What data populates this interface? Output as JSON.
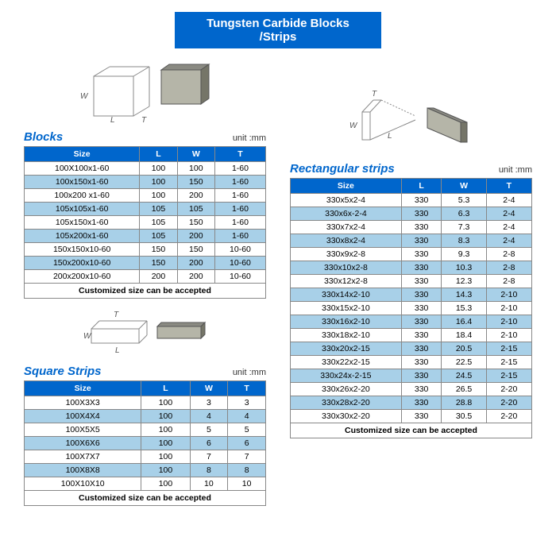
{
  "title": "Tungsten Carbide Blocks /Strips",
  "unit_label": "unit :mm",
  "footer_note": "Customized size can be accepted",
  "headers": {
    "size": "Size",
    "L": "L",
    "W": "W",
    "T": "T"
  },
  "blocks": {
    "title": "Blocks",
    "rows": [
      {
        "size": "100X100x1-60",
        "L": "100",
        "W": "100",
        "T": "1-60",
        "alt": false
      },
      {
        "size": "100x150x1-60",
        "L": "100",
        "W": "150",
        "T": "1-60",
        "alt": true
      },
      {
        "size": "100x200 x1-60",
        "L": "100",
        "W": "200",
        "T": "1-60",
        "alt": false
      },
      {
        "size": "105x105x1-60",
        "L": "105",
        "W": "105",
        "T": "1-60",
        "alt": true
      },
      {
        "size": "105x150x1-60",
        "L": "105",
        "W": "150",
        "T": "1-60",
        "alt": false
      },
      {
        "size": "105x200x1-60",
        "L": "105",
        "W": "200",
        "T": "1-60",
        "alt": true
      },
      {
        "size": "150x150x10-60",
        "L": "150",
        "W": "150",
        "T": "10-60",
        "alt": false
      },
      {
        "size": "150x200x10-60",
        "L": "150",
        "W": "200",
        "T": "10-60",
        "alt": true
      },
      {
        "size": "200x200x10-60",
        "L": "200",
        "W": "200",
        "T": "10-60",
        "alt": false
      }
    ]
  },
  "square_strips": {
    "title": "Square Strips",
    "rows": [
      {
        "size": "100X3X3",
        "L": "100",
        "W": "3",
        "T": "3",
        "alt": false
      },
      {
        "size": "100X4X4",
        "L": "100",
        "W": "4",
        "T": "4",
        "alt": true
      },
      {
        "size": "100X5X5",
        "L": "100",
        "W": "5",
        "T": "5",
        "alt": false
      },
      {
        "size": "100X6X6",
        "L": "100",
        "W": "6",
        "T": "6",
        "alt": true
      },
      {
        "size": "100X7X7",
        "L": "100",
        "W": "7",
        "T": "7",
        "alt": false
      },
      {
        "size": "100X8X8",
        "L": "100",
        "W": "8",
        "T": "8",
        "alt": true
      },
      {
        "size": "100X10X10",
        "L": "100",
        "W": "10",
        "T": "10",
        "alt": false
      }
    ]
  },
  "rect_strips": {
    "title": "Rectangular strips",
    "rows": [
      {
        "size": "330x5x2-4",
        "L": "330",
        "W": "5.3",
        "T": "2-4",
        "alt": false
      },
      {
        "size": "330x6x-2-4",
        "L": "330",
        "W": "6.3",
        "T": "2-4",
        "alt": true
      },
      {
        "size": "330x7x2-4",
        "L": "330",
        "W": "7.3",
        "T": "2-4",
        "alt": false
      },
      {
        "size": "330x8x2-4",
        "L": "330",
        "W": "8.3",
        "T": "2-4",
        "alt": true
      },
      {
        "size": "330x9x2-8",
        "L": "330",
        "W": "9.3",
        "T": "2-8",
        "alt": false
      },
      {
        "size": "330x10x2-8",
        "L": "330",
        "W": "10.3",
        "T": "2-8",
        "alt": true
      },
      {
        "size": "330x12x2-8",
        "L": "330",
        "W": "12.3",
        "T": "2-8",
        "alt": false
      },
      {
        "size": "330x14x2-10",
        "L": "330",
        "W": "14.3",
        "T": "2-10",
        "alt": true
      },
      {
        "size": "330x15x2-10",
        "L": "330",
        "W": "15.3",
        "T": "2-10",
        "alt": false
      },
      {
        "size": "330x16x2-10",
        "L": "330",
        "W": "16.4",
        "T": "2-10",
        "alt": true
      },
      {
        "size": "330x18x2-10",
        "L": "330",
        "W": "18.4",
        "T": "2-10",
        "alt": false
      },
      {
        "size": "330x20x2-15",
        "L": "330",
        "W": "20.5",
        "T": "2-15",
        "alt": true
      },
      {
        "size": "330x22x2-15",
        "L": "330",
        "W": "22.5",
        "T": "2-15",
        "alt": false
      },
      {
        "size": "330x24x-2-15",
        "L": "330",
        "W": "24.5",
        "T": "2-15",
        "alt": true
      },
      {
        "size": "330x26x2-20",
        "L": "330",
        "W": "26.5",
        "T": "2-20",
        "alt": false
      },
      {
        "size": "330x28x2-20",
        "L": "330",
        "W": "28.8",
        "T": "2-20",
        "alt": true
      },
      {
        "size": "330x30x2-20",
        "L": "330",
        "W": "30.5",
        "T": "2-20",
        "alt": false
      }
    ]
  },
  "colors": {
    "header_bg": "#0066cc",
    "alt_row_bg": "#a8d0e8",
    "border": "#888888"
  }
}
